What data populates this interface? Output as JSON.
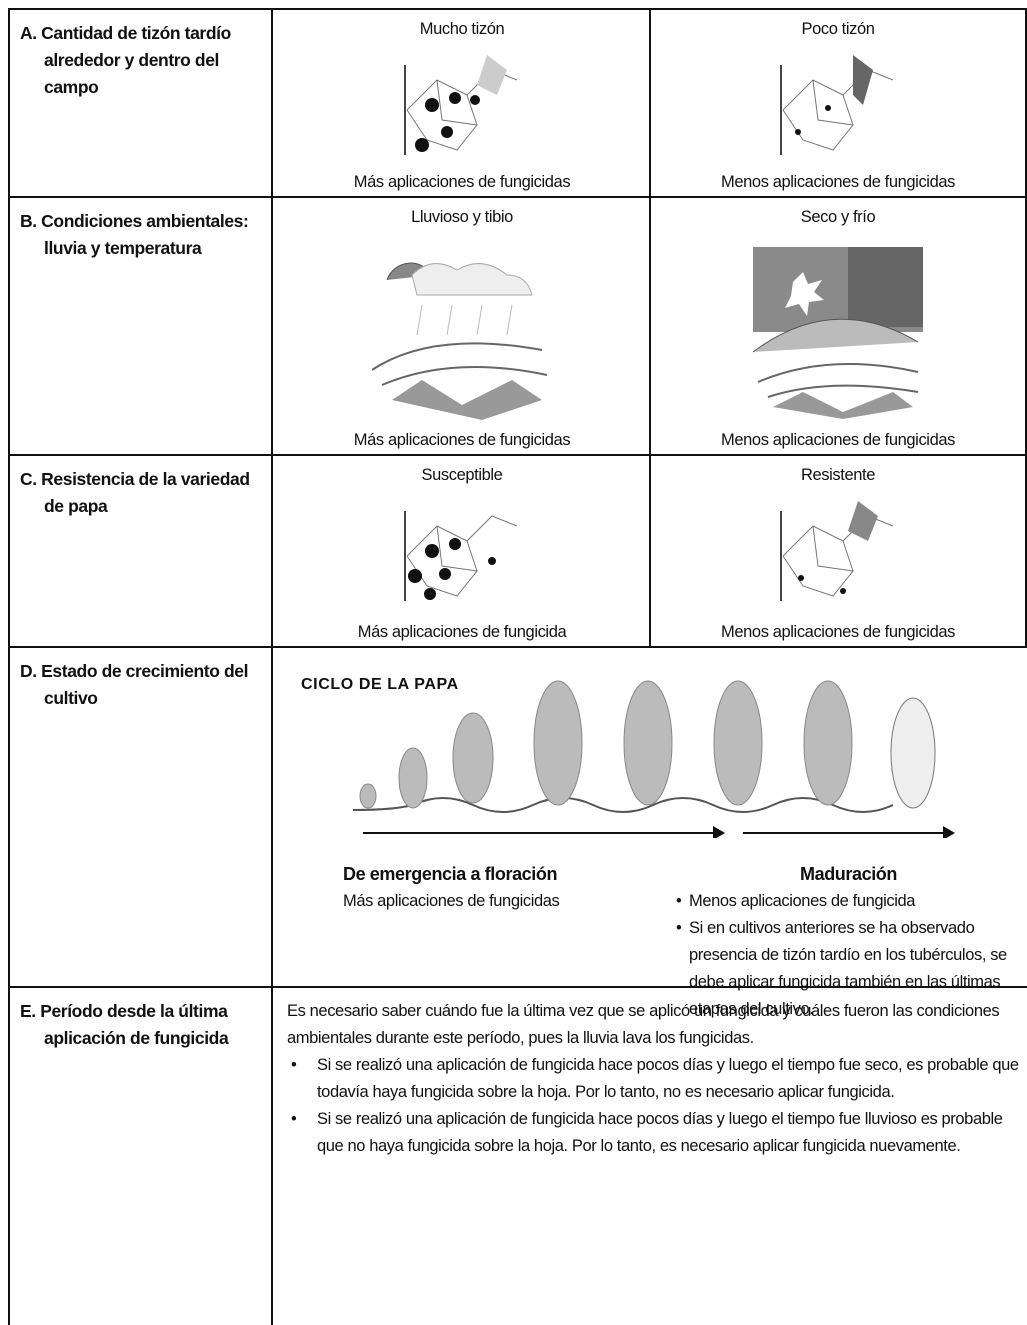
{
  "rows": [
    {
      "factor": "A. Cantidad de tizón tardío alrededor y dentro del campo",
      "left": {
        "heading": "Mucho tizón",
        "caption": "Más aplicaciones de fungicidas"
      },
      "right": {
        "heading": "Poco tizón",
        "caption": "Menos aplicaciones de fungicidas"
      }
    },
    {
      "factor": "B. Condiciones ambientales: lluvia y temperatura",
      "left": {
        "heading": "Lluvioso y tibio",
        "caption": "Más aplicaciones de fungicidas"
      },
      "right": {
        "heading": "Seco y frío",
        "caption": "Menos aplicaciones de fungicidas"
      }
    },
    {
      "factor": "C. Resistencia de la variedad de papa",
      "left": {
        "heading": "Susceptible",
        "caption": "Más aplicaciones de fungicida"
      },
      "right": {
        "heading": "Resistente",
        "caption": "Menos aplicaciones de fungicidas"
      }
    },
    {
      "factor": "D. Estado de crecimiento del cultivo",
      "cycle": {
        "title": "CICLO DE LA PAPA",
        "left_heading": "De emergencia a floración",
        "left_text": "Más aplicaciones de fungicidas",
        "right_heading": "Maduración",
        "right_bullets": [
          "Menos aplicaciones de fungicida",
          "Si en cultivos anteriores se ha observado presencia de tizón tardío en los tubérculos, se debe aplicar fungicida también en las últimas etapas del cultivo."
        ]
      }
    },
    {
      "factor": "E. Período desde la última aplicación de fungicida",
      "intro": "Es necesario saber cuándo fue la última vez que se aplicó un fungicida y cuáles fueron las condiciones ambientales durante este período, pues la lluvia lava los fungicidas.",
      "bullets": [
        "Si se realizó una aplicación de fungicida hace pocos días y luego el tiempo fue seco, es probable que todavía haya fungicida sobre la hoja. Por lo tanto, no es necesario aplicar fungicida.",
        "Si se realizó una aplicación de fungicida hace pocos días y luego el tiempo fue lluvioso es probable que no haya fungicida sobre la hoja. Por lo tanto, es necesario aplicar fungicida nuevamente."
      ]
    }
  ]
}
